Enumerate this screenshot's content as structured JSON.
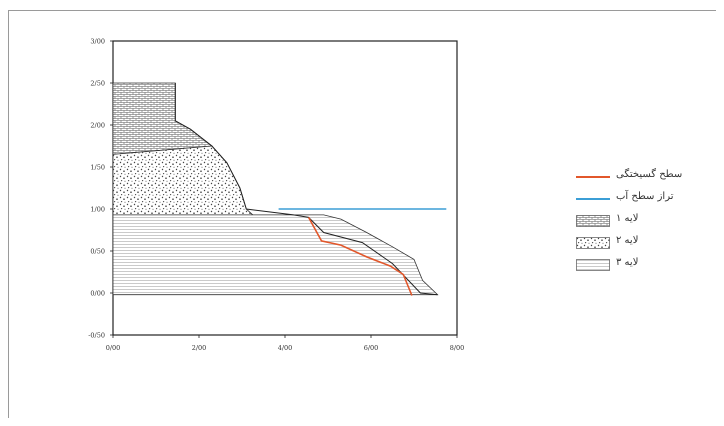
{
  "chart_data": {
    "type": "area",
    "title": "",
    "xlabel": "",
    "ylabel": "",
    "xlim": [
      0,
      8
    ],
    "ylim": [
      -0.5,
      3
    ],
    "x_ticks": [
      "0/00",
      "2/00",
      "4/00",
      "6/00",
      "8/00"
    ],
    "y_ticks": [
      "3/00",
      "2/50",
      "2/00",
      "1/50",
      "1/00",
      "0/50",
      "0/00",
      "-0/50"
    ],
    "x_tick_values": [
      0,
      2,
      4,
      6,
      8
    ],
    "y_tick_values": [
      3,
      2.5,
      2,
      1.5,
      1,
      0.5,
      0,
      -0.5
    ],
    "layers": [
      {
        "name": "لایه ۱",
        "polygon": [
          [
            0,
            1.65
          ],
          [
            0,
            2.5
          ],
          [
            1.45,
            2.5
          ],
          [
            1.45,
            2.05
          ],
          [
            1.8,
            1.95
          ],
          [
            2.3,
            1.75
          ],
          [
            0,
            1.65
          ]
        ]
      },
      {
        "name": "لایه ۲",
        "polygon": [
          [
            0,
            0.93
          ],
          [
            0,
            1.65
          ],
          [
            2.3,
            1.75
          ],
          [
            2.65,
            1.55
          ],
          [
            2.95,
            1.25
          ],
          [
            3.1,
            1.0
          ],
          [
            3.25,
            0.93
          ]
        ]
      },
      {
        "name": "لایه ۳",
        "polygon": [
          [
            0,
            0.93
          ],
          [
            0,
            -0.02
          ],
          [
            7.55,
            -0.02
          ],
          [
            7.2,
            0.15
          ],
          [
            7.0,
            0.4
          ],
          [
            6.5,
            0.55
          ],
          [
            5.9,
            0.72
          ],
          [
            5.3,
            0.88
          ],
          [
            4.9,
            0.93
          ]
        ]
      }
    ],
    "slope_profile": [
      [
        1.45,
        2.5
      ],
      [
        1.45,
        2.05
      ],
      [
        1.8,
        1.95
      ],
      [
        2.3,
        1.75
      ],
      [
        2.65,
        1.55
      ],
      [
        2.95,
        1.25
      ],
      [
        3.1,
        1.0
      ],
      [
        4.2,
        0.93
      ],
      [
        4.55,
        0.9
      ],
      [
        4.9,
        0.72
      ],
      [
        5.8,
        0.6
      ],
      [
        6.5,
        0.35
      ],
      [
        7.15,
        0.0
      ],
      [
        7.55,
        -0.02
      ]
    ],
    "series": [
      {
        "name": "سطح گسیختگی",
        "color": "#e2572b",
        "points": [
          [
            4.55,
            0.9
          ],
          [
            4.85,
            0.62
          ],
          [
            5.3,
            0.57
          ],
          [
            5.9,
            0.43
          ],
          [
            6.45,
            0.32
          ],
          [
            6.75,
            0.22
          ],
          [
            6.95,
            -0.03
          ]
        ]
      },
      {
        "name": "تراز سطح آب",
        "color": "#3b9ed6",
        "points": [
          [
            3.85,
            1.0
          ],
          [
            7.75,
            1.0
          ]
        ]
      }
    ],
    "legend_position": "right"
  },
  "legend": {
    "items": [
      {
        "label": "سطح گسیختگی",
        "type": "line",
        "color": "#e2572b"
      },
      {
        "label": "تراز سطح آب",
        "type": "line",
        "color": "#3b9ed6"
      },
      {
        "label": "لایه ۱",
        "type": "pattern",
        "pattern": "brick"
      },
      {
        "label": "لایه ۲",
        "type": "pattern",
        "pattern": "dots"
      },
      {
        "label": "لایه ۳",
        "type": "pattern",
        "pattern": "hlines"
      }
    ]
  }
}
